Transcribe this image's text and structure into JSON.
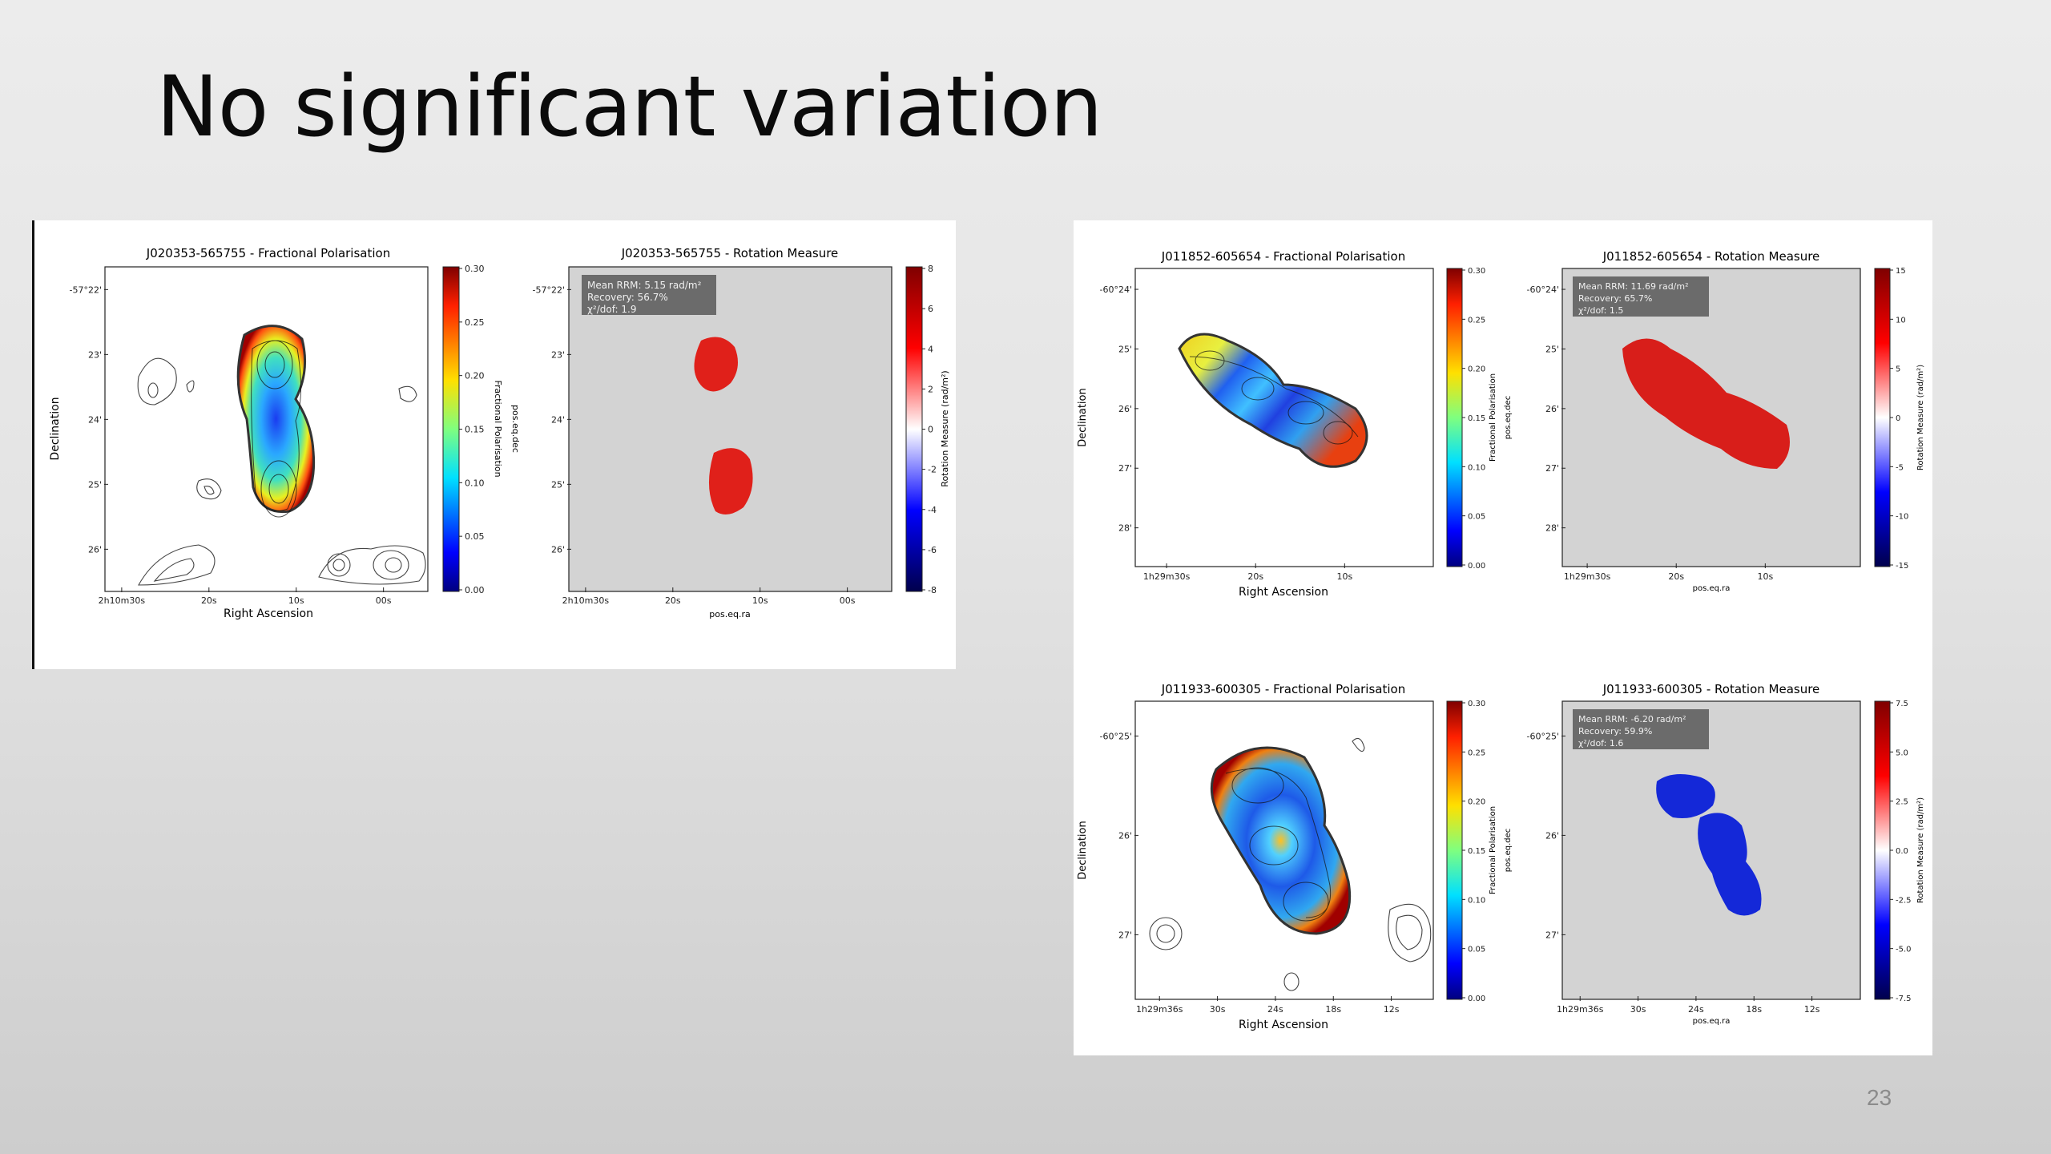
{
  "slide": {
    "title": "No significant variation",
    "page_number": "23"
  },
  "left_figure": {
    "fp": {
      "title": "J020353-565755 - Fractional Polarisation",
      "xlabel": "Right Ascension",
      "ylabel": "Declination",
      "xticks": [
        "2h10m30s",
        "20s",
        "10s",
        "00s"
      ],
      "yticks": [
        "-57°22'",
        "23'",
        "24'",
        "25'",
        "26'"
      ],
      "cbar_ticks": [
        "0.30",
        "0.25",
        "0.20",
        "0.15",
        "0.10",
        "0.05",
        "0.00"
      ],
      "cbar_label": "Fractional Polarisation",
      "right_label": "pos.eq.dec"
    },
    "rm": {
      "title": "J020353-565755 - Rotation Measure",
      "info": [
        "Mean RRM: 5.15 rad/m²",
        "Recovery: 56.7%",
        "χ²/dof: 1.9"
      ],
      "xlabel": "pos.eq.ra",
      "xticks": [
        "2h10m30s",
        "20s",
        "10s",
        "00s"
      ],
      "yticks": [
        "-57°22'",
        "23'",
        "24'",
        "25'",
        "26'"
      ],
      "cbar_ticks": [
        "8",
        "6",
        "4",
        "2",
        "0",
        "-2",
        "-4",
        "-6",
        "-8"
      ],
      "cbar_label": "Rotation Measure (rad/m²)"
    }
  },
  "right_figure": {
    "top_fp": {
      "title": "J011852-605654 - Fractional Polarisation",
      "xlabel": "Right Ascension",
      "ylabel": "Declination",
      "xticks": [
        "1h29m30s",
        "20s",
        "10s"
      ],
      "yticks": [
        "-60°24'",
        "25'",
        "26'",
        "27'",
        "28'"
      ],
      "cbar_ticks": [
        "0.30",
        "0.25",
        "0.20",
        "0.15",
        "0.10",
        "0.05",
        "0.00"
      ],
      "cbar_label": "Fractional Polarisation",
      "right_label": "pos.eq.dec"
    },
    "top_rm": {
      "title": "J011852-605654 - Rotation Measure",
      "info": [
        "Mean RRM: 11.69 rad/m²",
        "Recovery: 65.7%",
        "χ²/dof: 1.5"
      ],
      "xlabel": "pos.eq.ra",
      "xticks": [
        "1h29m30s",
        "20s",
        "10s"
      ],
      "yticks": [
        "-60°24'",
        "25'",
        "26'",
        "27'",
        "28'"
      ],
      "cbar_ticks": [
        "15",
        "10",
        "5",
        "0",
        "-5",
        "-10",
        "-15"
      ],
      "cbar_label": "Rotation Measure (rad/m²)"
    },
    "bottom_fp": {
      "title": "J011933-600305 - Fractional Polarisation",
      "xlabel": "Right Ascension",
      "ylabel": "Declination",
      "xticks": [
        "1h29m36s",
        "30s",
        "24s",
        "18s",
        "12s"
      ],
      "yticks": [
        "-60°25'",
        "26'",
        "27'"
      ],
      "cbar_ticks": [
        "0.30",
        "0.25",
        "0.20",
        "0.15",
        "0.10",
        "0.05",
        "0.00"
      ],
      "cbar_label": "Fractional Polarisation",
      "right_label": "pos.eq.dec"
    },
    "bottom_rm": {
      "title": "J011933-600305 - Rotation Measure",
      "info": [
        "Mean RRM: -6.20 rad/m²",
        "Recovery: 59.9%",
        "χ²/dof: 1.6"
      ],
      "xlabel": "pos.eq.ra",
      "xticks": [
        "1h29m36s",
        "30s",
        "24s",
        "18s",
        "12s"
      ],
      "yticks": [
        "-60°25'",
        "26'",
        "27'"
      ],
      "cbar_ticks": [
        "7.5",
        "5.0",
        "2.5",
        "0.0",
        "-2.5",
        "-5.0",
        "-7.5"
      ],
      "cbar_label": "Rotation Measure (rad/m²)"
    }
  },
  "colors": {
    "background": "#e6e6e6",
    "rm_frame_bg": "#d3d3d3",
    "rm_positive": "#e0201a",
    "rm_negative": "#1428d8"
  }
}
